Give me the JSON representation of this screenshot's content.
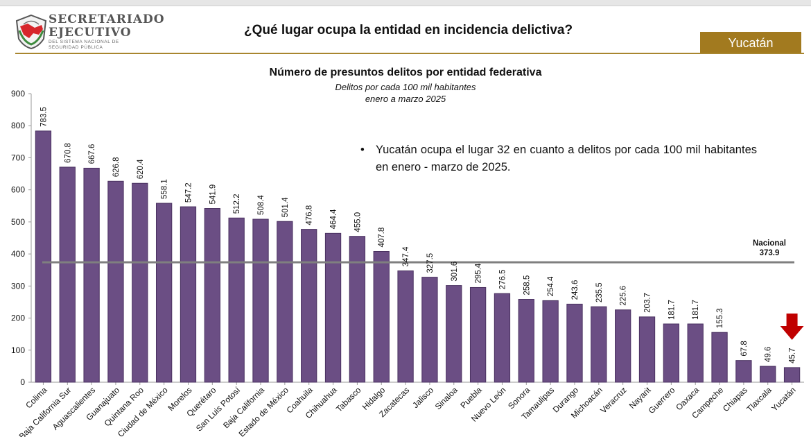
{
  "header": {
    "org_line1": "SECRETARIADO",
    "org_line2": "EJECUTIVO",
    "org_line3": "DEL SISTEMA NACIONAL DE SEGURIDAD PÚBLICA",
    "question": "¿Qué lugar ocupa la entidad en incidencia delictiva?",
    "entity": "Yucatán"
  },
  "colors": {
    "bar": "#6b4e84",
    "bar_stroke": "#4a3160",
    "reference_line": "#7f7f7f",
    "arrow": "#c00000",
    "accent": "#a27a1f"
  },
  "note": {
    "text": "Yucatán ocupa el lugar 32 en cuanto a delitos por cada 100 mil habitantes en enero - marzo de 2025."
  },
  "chart_data": {
    "type": "bar",
    "title": "Número de presuntos delitos por entidad federativa",
    "subtitle1": "Delitos por cada 100 mil habitantes",
    "subtitle2": "enero a marzo 2025",
    "ylim": [
      0,
      900
    ],
    "yticks": [
      0,
      100,
      200,
      300,
      400,
      500,
      600,
      700,
      800,
      900
    ],
    "grid": false,
    "categories": [
      "Colima",
      "Baja California Sur",
      "Aguascalientes",
      "Guanajuato",
      "Quintana Roo",
      "Ciudad de México",
      "Morelos",
      "Querétaro",
      "San Luis Potosí",
      "Baja California",
      "Estado de México",
      "Coahuila",
      "Chihuahua",
      "Tabasco",
      "Hidalgo",
      "Zacatecas",
      "Jalisco",
      "Sinaloa",
      "Puebla",
      "Nuevo León",
      "Sonora",
      "Tamaulipas",
      "Durango",
      "Michoacán",
      "Veracruz",
      "Nayarit",
      "Guerrero",
      "Oaxaca",
      "Campeche",
      "Chiapas",
      "Tlaxcala",
      "Yucatán"
    ],
    "values": [
      783.5,
      670.8,
      667.6,
      626.8,
      620.4,
      558.1,
      547.2,
      541.9,
      512.2,
      508.4,
      501.4,
      476.8,
      464.4,
      455.0,
      407.8,
      347.4,
      327.5,
      301.6,
      295.4,
      276.5,
      258.5,
      254.4,
      243.6,
      235.5,
      225.6,
      203.7,
      181.7,
      181.7,
      155.3,
      67.8,
      49.6,
      45.7
    ],
    "value_labels": [
      "783.5",
      "670.8",
      "667.6",
      "626.8",
      "620.4",
      "558.1",
      "547.2",
      "541.9",
      "512.2",
      "508.4",
      "501.4",
      "476.8",
      "464.4",
      "455.0",
      "407.8",
      "347.4",
      "327.5",
      "301.6",
      "295.4",
      "276.5",
      "258.5",
      "254.4",
      "243.6",
      "235.5",
      "225.6",
      "203.7",
      "181.7",
      "181.7",
      "155.3",
      "67.8",
      "49.6",
      "45.7"
    ],
    "reference": {
      "label": "Nacional",
      "value": 373.9,
      "value_label": "373.9"
    },
    "highlight": "Yucatán"
  }
}
